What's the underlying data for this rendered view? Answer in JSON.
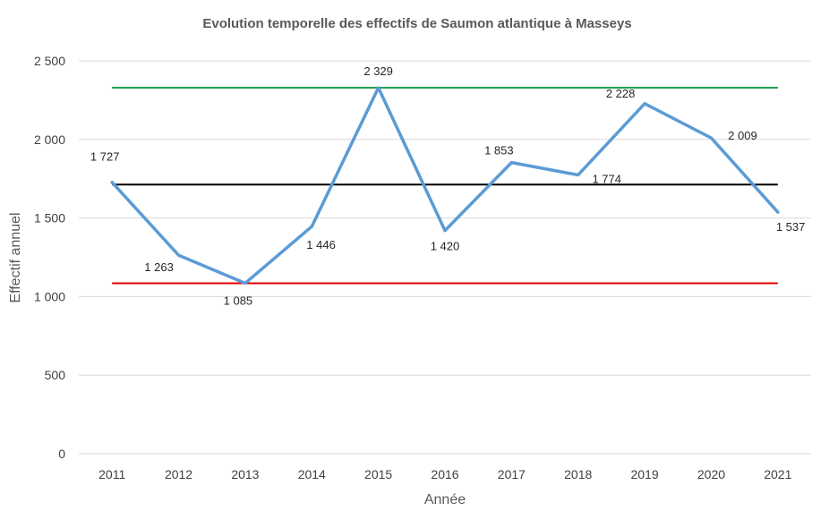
{
  "chart_data": {
    "type": "line",
    "title": "Evolution temporelle des effectifs de Saumon atlantique à Masseys",
    "xlabel": "Année",
    "ylabel": "Effectif annuel",
    "categories": [
      "2011",
      "2012",
      "2013",
      "2014",
      "2015",
      "2016",
      "2017",
      "2018",
      "2019",
      "2020",
      "2021"
    ],
    "ylim": [
      0,
      2500
    ],
    "yticks": [
      0,
      500,
      1000,
      1500,
      2000,
      2500
    ],
    "ytick_labels": [
      "0",
      "500",
      "1 000",
      "1 500",
      "2 000",
      "2 500"
    ],
    "grid": true,
    "legend": "none",
    "series": [
      {
        "color": "#5b9bd5",
        "values": [
          1727,
          1263,
          1085,
          1446,
          2329,
          1420,
          1853,
          1774,
          2228,
          2009,
          1537
        ],
        "labels": [
          "1 727",
          "1 263",
          "1 085",
          "1 446",
          "2 329",
          "1 420",
          "1 853",
          "1 774",
          "2 228",
          "2 009",
          "1 537"
        ]
      }
    ],
    "reference_lines": [
      {
        "value": 2329,
        "color": "#1e9e4f"
      },
      {
        "value": 1713,
        "color": "#000000"
      },
      {
        "value": 1085,
        "color": "#e00000"
      }
    ]
  }
}
